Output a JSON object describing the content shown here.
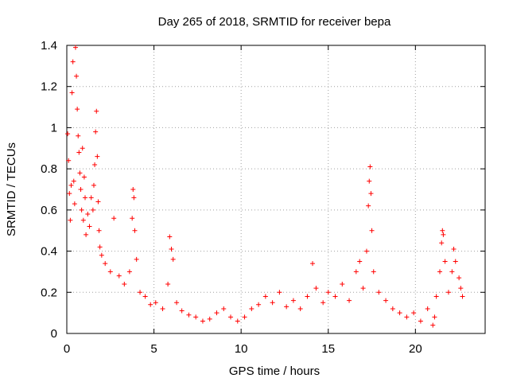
{
  "chart_data": {
    "type": "scatter",
    "title": "Day 265 of 2018, SRMTID for receiver bepa",
    "xlabel": "GPS time / hours",
    "ylabel": "SRMTID / TECUs",
    "xlim": [
      0,
      24
    ],
    "ylim": [
      0,
      1.4
    ],
    "x_ticks": [
      0,
      5,
      10,
      15,
      20
    ],
    "x_tick_labels": [
      "0",
      "5",
      "10",
      "15",
      "20"
    ],
    "y_ticks": [
      0,
      0.2,
      0.4,
      0.6,
      0.8,
      1,
      1.2,
      1.4
    ],
    "y_tick_labels": [
      "0",
      "0.2",
      "0.4",
      "0.6",
      "0.8",
      "1",
      "1.2",
      "1.4"
    ],
    "grid": true,
    "marker": "+",
    "color": "#ff0000",
    "series": [
      {
        "name": "SRMTID",
        "points": [
          [
            0.05,
            0.97
          ],
          [
            0.1,
            0.84
          ],
          [
            0.15,
            0.68
          ],
          [
            0.2,
            0.55
          ],
          [
            0.25,
            0.72
          ],
          [
            0.3,
            1.17
          ],
          [
            0.35,
            1.32
          ],
          [
            0.4,
            0.74
          ],
          [
            0.45,
            0.63
          ],
          [
            0.5,
            1.39
          ],
          [
            0.55,
            1.25
          ],
          [
            0.6,
            1.09
          ],
          [
            0.65,
            0.96
          ],
          [
            0.7,
            0.88
          ],
          [
            0.75,
            0.78
          ],
          [
            0.8,
            0.7
          ],
          [
            0.85,
            0.6
          ],
          [
            0.9,
            0.9
          ],
          [
            0.95,
            0.55
          ],
          [
            1.0,
            0.76
          ],
          [
            1.05,
            0.66
          ],
          [
            1.1,
            0.48
          ],
          [
            1.2,
            0.58
          ],
          [
            1.3,
            0.52
          ],
          [
            1.4,
            0.66
          ],
          [
            1.5,
            0.6
          ],
          [
            1.55,
            0.72
          ],
          [
            1.6,
            0.82
          ],
          [
            1.65,
            0.98
          ],
          [
            1.7,
            1.08
          ],
          [
            1.75,
            0.86
          ],
          [
            1.8,
            0.64
          ],
          [
            1.85,
            0.5
          ],
          [
            1.9,
            0.42
          ],
          [
            2.0,
            0.38
          ],
          [
            2.2,
            0.34
          ],
          [
            2.5,
            0.3
          ],
          [
            2.7,
            0.56
          ],
          [
            3.0,
            0.28
          ],
          [
            3.3,
            0.24
          ],
          [
            3.6,
            0.3
          ],
          [
            3.75,
            0.56
          ],
          [
            3.8,
            0.7
          ],
          [
            3.85,
            0.66
          ],
          [
            3.9,
            0.5
          ],
          [
            4.0,
            0.36
          ],
          [
            4.2,
            0.2
          ],
          [
            4.5,
            0.18
          ],
          [
            4.8,
            0.14
          ],
          [
            5.1,
            0.15
          ],
          [
            5.5,
            0.12
          ],
          [
            5.8,
            0.24
          ],
          [
            5.9,
            0.47
          ],
          [
            6.0,
            0.41
          ],
          [
            6.1,
            0.36
          ],
          [
            6.3,
            0.15
          ],
          [
            6.6,
            0.11
          ],
          [
            7.0,
            0.09
          ],
          [
            7.4,
            0.08
          ],
          [
            7.8,
            0.06
          ],
          [
            8.2,
            0.07
          ],
          [
            8.6,
            0.1
          ],
          [
            9.0,
            0.12
          ],
          [
            9.4,
            0.08
          ],
          [
            9.8,
            0.06
          ],
          [
            10.2,
            0.08
          ],
          [
            10.6,
            0.12
          ],
          [
            11.0,
            0.14
          ],
          [
            11.4,
            0.18
          ],
          [
            11.8,
            0.15
          ],
          [
            12.2,
            0.2
          ],
          [
            12.6,
            0.13
          ],
          [
            13.0,
            0.16
          ],
          [
            13.4,
            0.12
          ],
          [
            13.8,
            0.18
          ],
          [
            14.1,
            0.34
          ],
          [
            14.3,
            0.22
          ],
          [
            14.7,
            0.15
          ],
          [
            15.0,
            0.2
          ],
          [
            15.4,
            0.18
          ],
          [
            15.8,
            0.24
          ],
          [
            16.2,
            0.16
          ],
          [
            16.6,
            0.3
          ],
          [
            16.8,
            0.35
          ],
          [
            17.0,
            0.22
          ],
          [
            17.2,
            0.4
          ],
          [
            17.3,
            0.62
          ],
          [
            17.35,
            0.74
          ],
          [
            17.4,
            0.81
          ],
          [
            17.45,
            0.68
          ],
          [
            17.5,
            0.5
          ],
          [
            17.6,
            0.3
          ],
          [
            17.9,
            0.2
          ],
          [
            18.3,
            0.16
          ],
          [
            18.7,
            0.12
          ],
          [
            19.1,
            0.1
          ],
          [
            19.5,
            0.08
          ],
          [
            19.9,
            0.1
          ],
          [
            20.3,
            0.06
          ],
          [
            20.7,
            0.12
          ],
          [
            21.0,
            0.04
          ],
          [
            21.1,
            0.08
          ],
          [
            21.2,
            0.18
          ],
          [
            21.4,
            0.3
          ],
          [
            21.5,
            0.44
          ],
          [
            21.55,
            0.5
          ],
          [
            21.6,
            0.48
          ],
          [
            21.7,
            0.35
          ],
          [
            21.9,
            0.2
          ],
          [
            22.1,
            0.3
          ],
          [
            22.2,
            0.41
          ],
          [
            22.3,
            0.35
          ],
          [
            22.5,
            0.27
          ],
          [
            22.6,
            0.22
          ],
          [
            22.7,
            0.18
          ]
        ]
      }
    ]
  }
}
